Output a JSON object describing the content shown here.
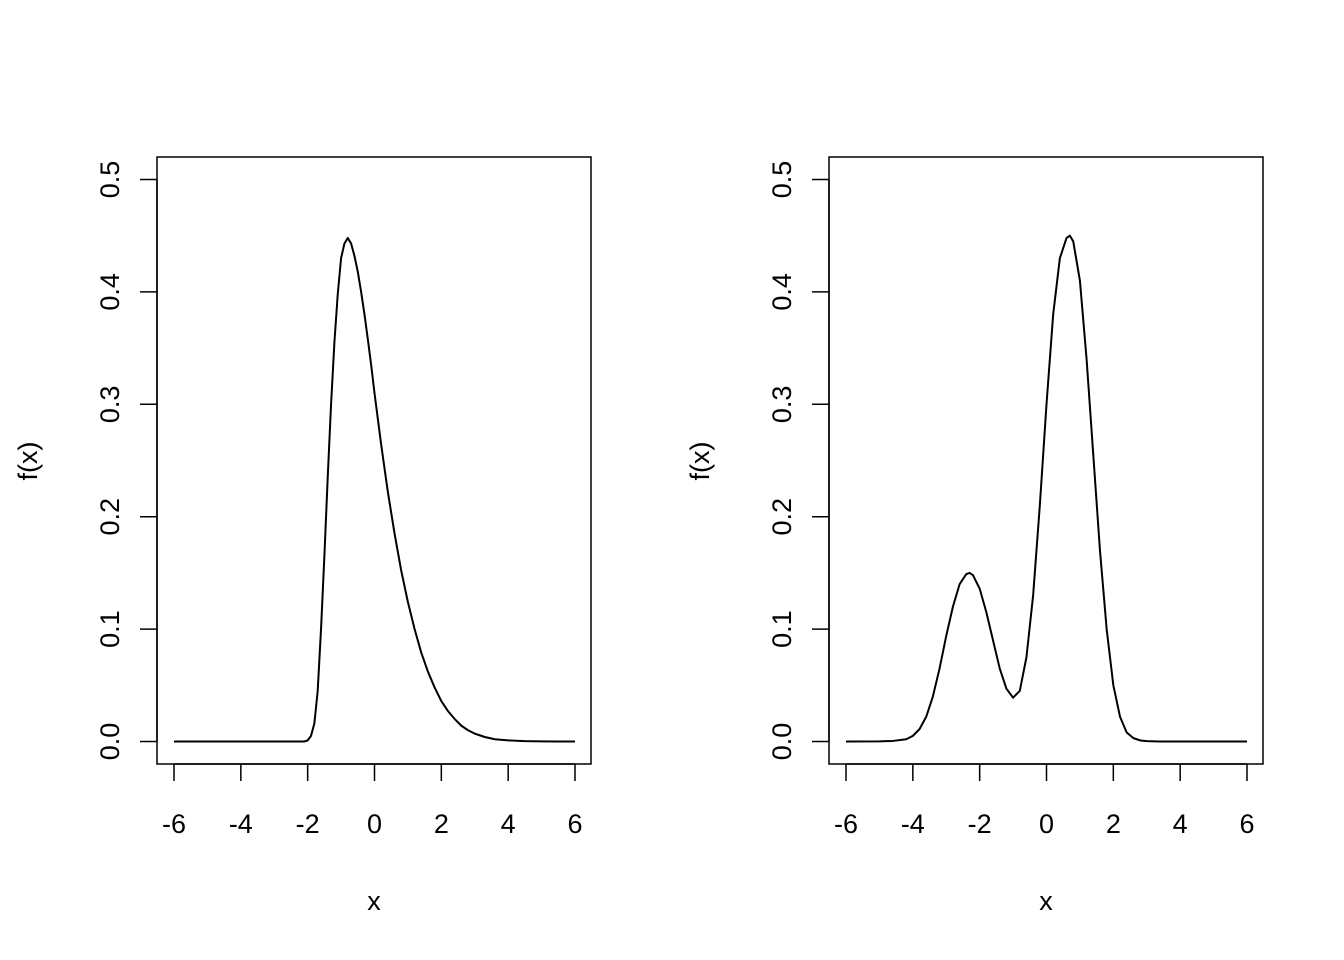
{
  "chart_data": [
    {
      "type": "line",
      "title": "",
      "xlabel": "x",
      "ylabel": "f(x)",
      "xlim": [
        -6,
        6
      ],
      "ylim": [
        0,
        0.5
      ],
      "xticks": [
        -6,
        -4,
        -2,
        0,
        2,
        4,
        6
      ],
      "yticks": [
        0.0,
        0.1,
        0.2,
        0.3,
        0.4,
        0.5
      ],
      "xtick_labels": [
        "-6",
        "-4",
        "-2",
        "0",
        "2",
        "4",
        "6"
      ],
      "ytick_labels": [
        "0.0",
        "0.1",
        "0.2",
        "0.3",
        "0.4",
        "0.5"
      ],
      "grid": false,
      "series": [
        {
          "x": [
            -6,
            -4,
            -2.1,
            -2.0,
            -1.9,
            -1.8,
            -1.7,
            -1.6,
            -1.5,
            -1.4,
            -1.3,
            -1.2,
            -1.1,
            -1.0,
            -0.9,
            -0.8,
            -0.7,
            -0.6,
            -0.5,
            -0.4,
            -0.3,
            -0.2,
            -0.1,
            0.0,
            0.2,
            0.4,
            0.6,
            0.8,
            1.0,
            1.2,
            1.4,
            1.6,
            1.8,
            2.0,
            2.2,
            2.4,
            2.6,
            2.8,
            3.0,
            3.3,
            3.6,
            4.0,
            4.5,
            5.0,
            5.5,
            6.0
          ],
          "y": [
            0,
            0,
            0,
            0.001,
            0.005,
            0.016,
            0.045,
            0.1,
            0.165,
            0.235,
            0.3,
            0.355,
            0.398,
            0.43,
            0.443,
            0.448,
            0.443,
            0.432,
            0.418,
            0.4,
            0.38,
            0.358,
            0.335,
            0.31,
            0.264,
            0.222,
            0.185,
            0.152,
            0.124,
            0.1,
            0.079,
            0.062,
            0.048,
            0.036,
            0.027,
            0.02,
            0.014,
            0.01,
            0.007,
            0.004,
            0.002,
            0.001,
            0.0003,
            0.0001,
            3e-05,
            0
          ]
        }
      ]
    },
    {
      "type": "line",
      "title": "",
      "xlabel": "x",
      "ylabel": "f(x)",
      "xlim": [
        -6,
        6
      ],
      "ylim": [
        0,
        0.5
      ],
      "xticks": [
        -6,
        -4,
        -2,
        0,
        2,
        4,
        6
      ],
      "yticks": [
        0.0,
        0.1,
        0.2,
        0.3,
        0.4,
        0.5
      ],
      "xtick_labels": [
        "-6",
        "-4",
        "-2",
        "0",
        "2",
        "4",
        "6"
      ],
      "ytick_labels": [
        "0.0",
        "0.1",
        "0.2",
        "0.3",
        "0.4",
        "0.5"
      ],
      "grid": false,
      "series": [
        {
          "x": [
            -6,
            -5,
            -4.6,
            -4.2,
            -4.0,
            -3.8,
            -3.6,
            -3.4,
            -3.2,
            -3.0,
            -2.8,
            -2.6,
            -2.4,
            -2.3,
            -2.2,
            -2.0,
            -1.8,
            -1.6,
            -1.4,
            -1.2,
            -1.0,
            -0.8,
            -0.6,
            -0.4,
            -0.2,
            0.0,
            0.2,
            0.4,
            0.6,
            0.7,
            0.8,
            1.0,
            1.2,
            1.4,
            1.6,
            1.8,
            2.0,
            2.2,
            2.4,
            2.6,
            2.8,
            3.0,
            3.4,
            4,
            5,
            6
          ],
          "y": [
            0,
            0.0001,
            0.0005,
            0.002,
            0.005,
            0.011,
            0.022,
            0.04,
            0.065,
            0.094,
            0.12,
            0.14,
            0.149,
            0.15,
            0.148,
            0.136,
            0.115,
            0.09,
            0.065,
            0.047,
            0.039,
            0.045,
            0.075,
            0.13,
            0.21,
            0.3,
            0.38,
            0.43,
            0.448,
            0.45,
            0.445,
            0.41,
            0.34,
            0.255,
            0.17,
            0.1,
            0.05,
            0.022,
            0.008,
            0.003,
            0.001,
            0.0003,
            5e-05,
            0,
            0,
            0
          ]
        }
      ]
    }
  ]
}
